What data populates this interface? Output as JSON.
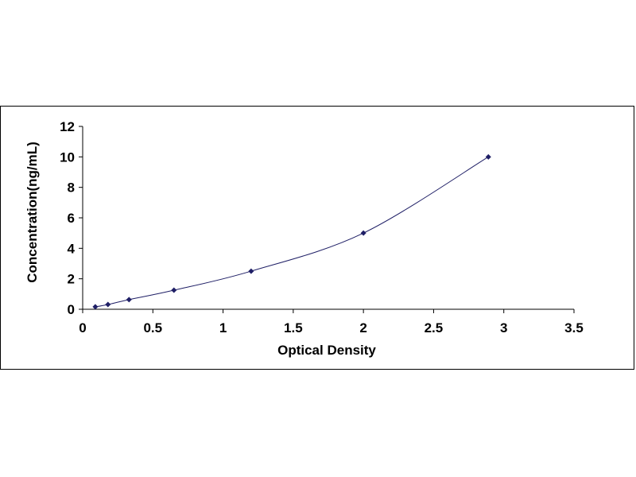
{
  "chart_data": {
    "type": "scatter",
    "title": "",
    "xlabel": "Optical Density",
    "ylabel": "Concentration(ng/mL)",
    "xlim": [
      0,
      3.5
    ],
    "ylim": [
      0,
      12
    ],
    "x_ticks": [
      0,
      0.5,
      1,
      1.5,
      2,
      2.5,
      3,
      3.5
    ],
    "x_tick_labels": [
      "0",
      "0.5",
      "1",
      "1.5",
      "2",
      "2.5",
      "3",
      "3.5"
    ],
    "y_ticks": [
      0,
      2,
      4,
      6,
      8,
      10,
      12
    ],
    "y_tick_labels": [
      "0",
      "2",
      "4",
      "6",
      "8",
      "10",
      "12"
    ],
    "grid": false,
    "legend": "none",
    "trendline": "smooth",
    "series": [
      {
        "x": [
          0.09,
          0.18,
          0.33,
          0.65,
          1.2,
          2.0,
          2.89
        ],
        "y": [
          0.16,
          0.31,
          0.63,
          1.25,
          2.5,
          5,
          10
        ]
      }
    ],
    "colors": {
      "marker": "#1f1f66",
      "line": "#1f1f66",
      "axis": "#000000"
    }
  }
}
